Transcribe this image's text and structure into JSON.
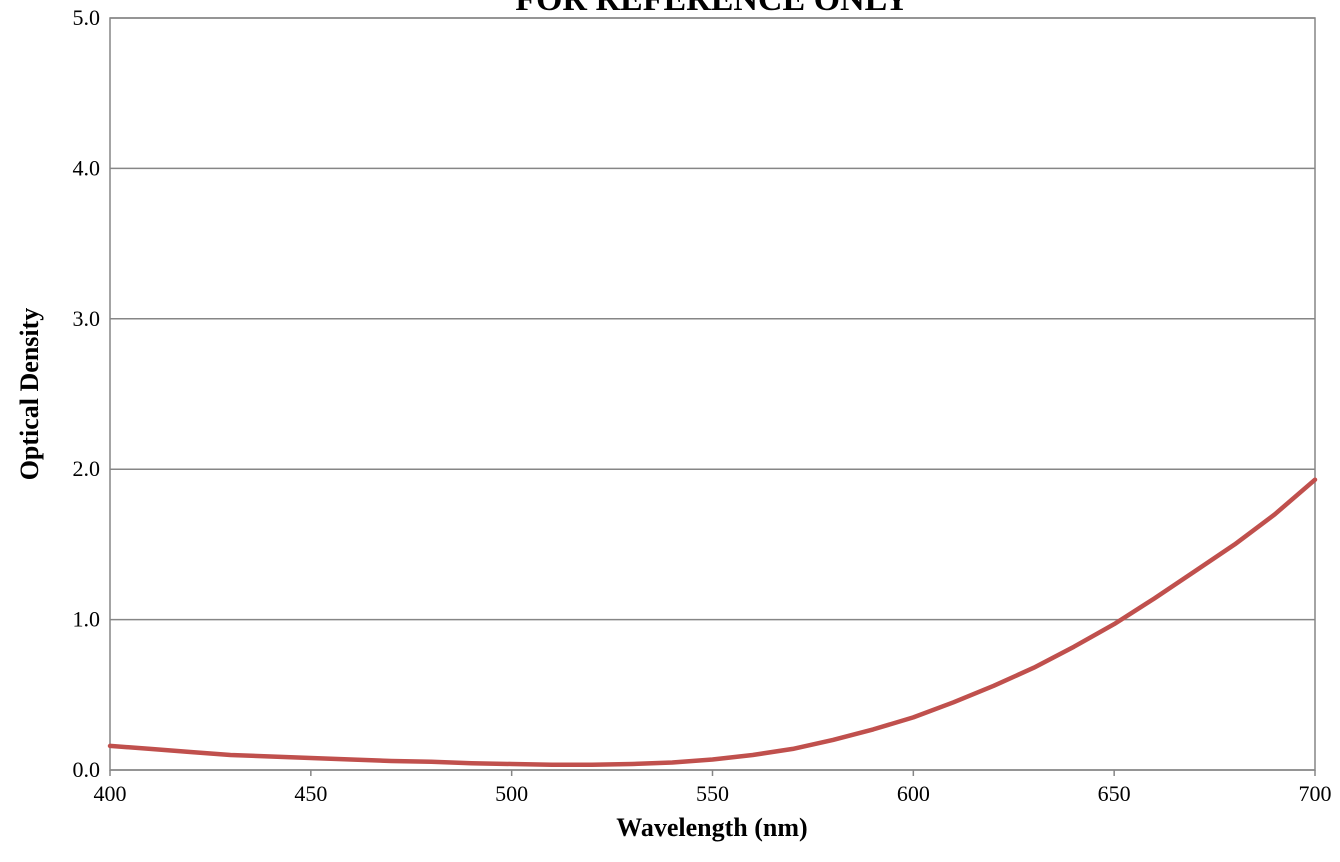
{
  "chart_data": {
    "type": "line",
    "title": "FOR REFERENCE ONLY",
    "xlabel": "Wavelength (nm)",
    "ylabel": "Optical Density",
    "xlim": [
      400,
      700
    ],
    "ylim": [
      0,
      5
    ],
    "x_ticks": [
      "400",
      "450",
      "500",
      "550",
      "600",
      "650",
      "700"
    ],
    "y_ticks": [
      "0.0",
      "1.0",
      "2.0",
      "3.0",
      "4.0",
      "5.0"
    ],
    "grid": "horizontal",
    "legend": "none",
    "series": [
      {
        "color": "#c0504d",
        "x": [
          400,
          410,
          420,
          430,
          440,
          450,
          460,
          470,
          480,
          490,
          500,
          510,
          520,
          530,
          540,
          550,
          560,
          570,
          580,
          590,
          600,
          610,
          620,
          630,
          640,
          650,
          660,
          670,
          680,
          690,
          700
        ],
        "y": [
          0.16,
          0.14,
          0.12,
          0.1,
          0.09,
          0.08,
          0.07,
          0.06,
          0.055,
          0.045,
          0.04,
          0.035,
          0.035,
          0.04,
          0.05,
          0.07,
          0.1,
          0.14,
          0.2,
          0.27,
          0.35,
          0.45,
          0.56,
          0.68,
          0.82,
          0.97,
          1.14,
          1.32,
          1.5,
          1.7,
          1.93
        ]
      }
    ]
  }
}
